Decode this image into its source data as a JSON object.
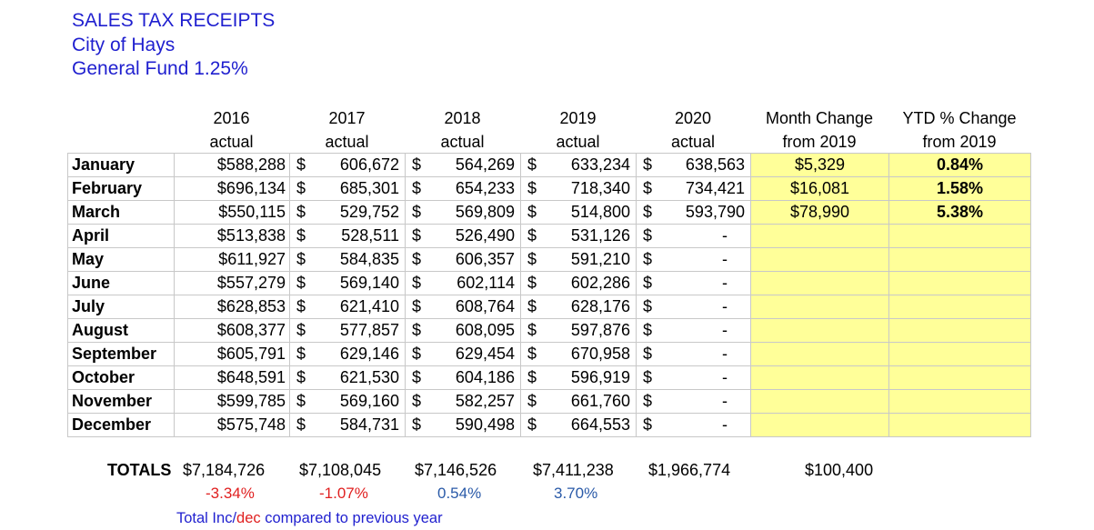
{
  "title": {
    "line1": "SALES TAX RECEIPTS",
    "line2": "City of Hays",
    "line3": "General Fund 1.25%"
  },
  "headers": {
    "y2016": [
      "2016",
      "actual"
    ],
    "y2017": [
      "2017",
      "actual"
    ],
    "y2018": [
      "2018",
      "actual"
    ],
    "y2019": [
      "2019",
      "actual"
    ],
    "y2020": [
      "2020",
      "actual"
    ],
    "month_change": [
      "Month Change",
      "from 2019"
    ],
    "ytd_change": [
      "YTD % Change",
      "from 2019"
    ]
  },
  "currency_symbol": "$",
  "empty_value": "-",
  "rows": [
    {
      "month": "January",
      "y2016": "$588,288",
      "y2017": "606,672",
      "y2018": "564,269",
      "y2019": "633,234",
      "y2020": "638,563",
      "month_change": "$5,329",
      "ytd": "0.84%"
    },
    {
      "month": "February",
      "y2016": "$696,134",
      "y2017": "685,301",
      "y2018": "654,233",
      "y2019": "718,340",
      "y2020": "734,421",
      "month_change": "$16,081",
      "ytd": "1.58%"
    },
    {
      "month": "March",
      "y2016": "$550,115",
      "y2017": "529,752",
      "y2018": "569,809",
      "y2019": "514,800",
      "y2020": "593,790",
      "month_change": "$78,990",
      "ytd": "5.38%"
    },
    {
      "month": "April",
      "y2016": "$513,838",
      "y2017": "528,511",
      "y2018": "526,490",
      "y2019": "531,126",
      "y2020": "",
      "month_change": "",
      "ytd": ""
    },
    {
      "month": "May",
      "y2016": "$611,927",
      "y2017": "584,835",
      "y2018": "606,357",
      "y2019": "591,210",
      "y2020": "",
      "month_change": "",
      "ytd": ""
    },
    {
      "month": "June",
      "y2016": "$557,279",
      "y2017": "569,140",
      "y2018": "602,114",
      "y2019": "602,286",
      "y2020": "",
      "month_change": "",
      "ytd": ""
    },
    {
      "month": "July",
      "y2016": "$628,853",
      "y2017": "621,410",
      "y2018": "608,764",
      "y2019": "628,176",
      "y2020": "",
      "month_change": "",
      "ytd": ""
    },
    {
      "month": "August",
      "y2016": "$608,377",
      "y2017": "577,857",
      "y2018": "608,095",
      "y2019": "597,876",
      "y2020": "",
      "month_change": "",
      "ytd": ""
    },
    {
      "month": "September",
      "y2016": "$605,791",
      "y2017": "629,146",
      "y2018": "629,454",
      "y2019": "670,958",
      "y2020": "",
      "month_change": "",
      "ytd": ""
    },
    {
      "month": "October",
      "y2016": "$648,591",
      "y2017": "621,530",
      "y2018": "604,186",
      "y2019": "596,919",
      "y2020": "",
      "month_change": "",
      "ytd": ""
    },
    {
      "month": "November",
      "y2016": "$599,785",
      "y2017": "569,160",
      "y2018": "582,257",
      "y2019": "661,760",
      "y2020": "",
      "month_change": "",
      "ytd": ""
    },
    {
      "month": "December",
      "y2016": "$575,748",
      "y2017": "584,731",
      "y2018": "590,498",
      "y2019": "664,553",
      "y2020": "",
      "month_change": "",
      "ytd": ""
    }
  ],
  "totals": {
    "label": "TOTALS",
    "y2016": "$7,184,726",
    "y2017": "$7,108,045",
    "y2018": "$7,146,526",
    "y2019": "$7,411,238",
    "y2020": "$1,966,774",
    "month_change": "$100,400"
  },
  "pct_change": {
    "y2016": "-3.34%",
    "y2017": "-1.07%",
    "y2018": "0.54%",
    "y2019": "3.70%"
  },
  "note": {
    "part1": "Total Inc/",
    "part2": "dec",
    "part3": " compared to previous year"
  },
  "colors": {
    "title": "#1f1fcf",
    "highlight": "#ffff99",
    "negative": "#e02020",
    "positive": "#2a5aa8",
    "gridline": "#c8c8c8"
  }
}
